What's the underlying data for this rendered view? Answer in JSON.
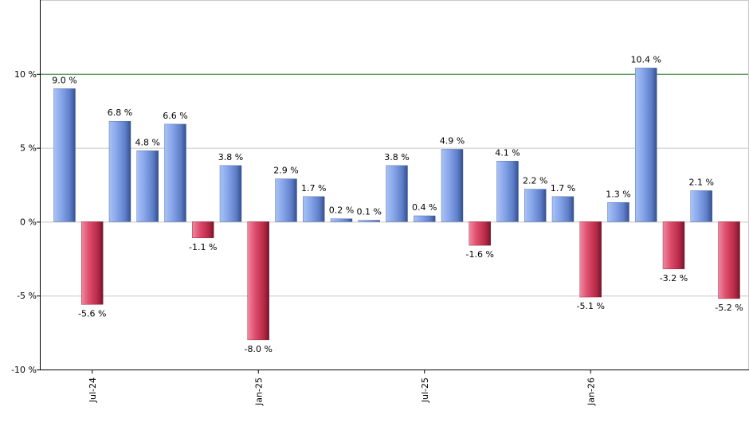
{
  "chart_data": {
    "type": "bar",
    "title": "",
    "xlabel": "",
    "ylabel": "",
    "x": [
      "2024-06",
      "2024-07",
      "2024-08",
      "2024-09",
      "2024-10",
      "2024-11",
      "2024-12",
      "2025-01",
      "2025-02",
      "2025-03",
      "2025-04",
      "2025-05",
      "2025-06",
      "2025-07",
      "2025-08",
      "2025-09",
      "2025-10",
      "2025-11",
      "2025-12",
      "2026-01",
      "2026-02",
      "2026-03",
      "2026-04",
      "2026-05",
      "2026-06"
    ],
    "values": [
      9.0,
      -5.6,
      6.8,
      4.8,
      6.6,
      -1.1,
      3.8,
      -8.0,
      2.9,
      1.7,
      0.2,
      0.1,
      3.8,
      0.4,
      4.9,
      -1.6,
      4.1,
      2.2,
      1.7,
      -5.1,
      1.3,
      10.4,
      -3.2,
      2.1,
      -5.2
    ],
    "data_labels": [
      "9.0 %",
      "-5.6 %",
      "6.8 %",
      "4.8 %",
      "6.6 %",
      "-1.1 %",
      "3.8 %",
      "-8.0 %",
      "2.9 %",
      "1.7 %",
      "0.2 %",
      "0.1 %",
      "3.8 %",
      "0.4 %",
      "4.9 %",
      "-1.6 %",
      "4.1 %",
      "2.2 %",
      "1.7 %",
      "-5.1 %",
      "1.3 %",
      "10.4 %",
      "-3.2 %",
      "2.1 %",
      "-5.2 %"
    ],
    "ylim": [
      -10,
      15
    ],
    "y_ticks": [
      {
        "value": 10,
        "label": "10 %"
      },
      {
        "value": 5,
        "label": "5 %"
      },
      {
        "value": 0,
        "label": "0 %"
      },
      {
        "value": -5,
        "label": "-5 %"
      },
      {
        "value": -10,
        "label": "-10 %"
      }
    ],
    "x_ticks": [
      {
        "index": 1,
        "label": "Jul-24"
      },
      {
        "index": 7,
        "label": "Jan-25"
      },
      {
        "index": 13,
        "label": "Jul-25"
      },
      {
        "index": 19,
        "label": "Jan-26"
      }
    ],
    "reference_line": 10,
    "grid": true,
    "colors": {
      "positive": "#6f8fd6",
      "negative": "#c8334f",
      "reference_line": "#2e7d32",
      "grid": "#c8c8c8",
      "axis": "#000000"
    }
  }
}
